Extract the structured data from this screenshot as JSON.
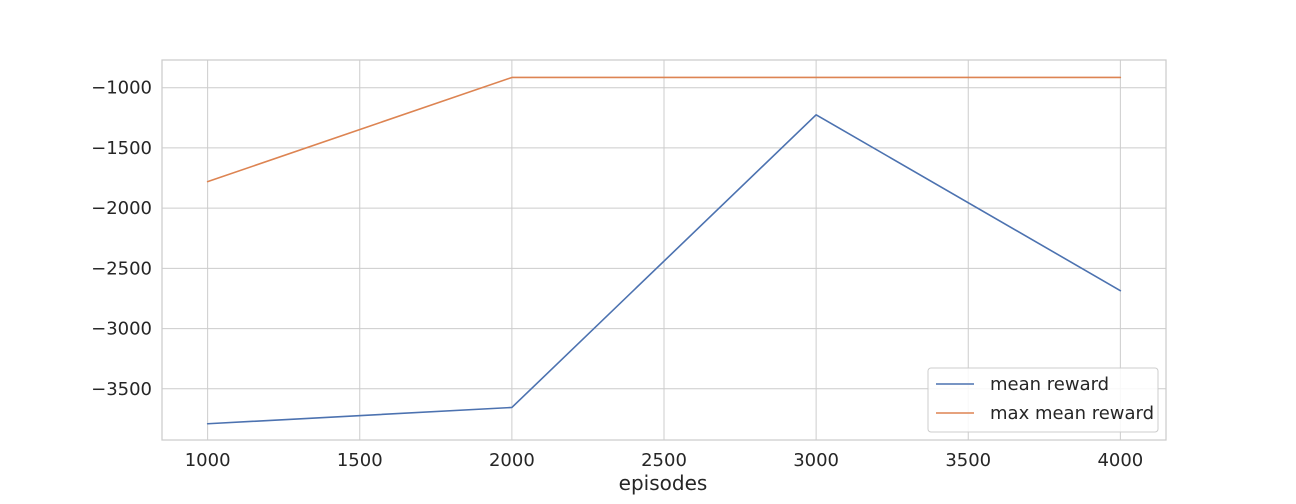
{
  "chart_data": {
    "type": "line",
    "title": "",
    "xlabel": "episodes",
    "ylabel": "",
    "x": [
      1000,
      2000,
      3000,
      4000
    ],
    "series": [
      {
        "name": "mean reward",
        "color": "#4c72b0",
        "values": [
          -3790,
          -3655,
          -1225,
          -2685
        ]
      },
      {
        "name": "max mean reward",
        "color": "#dd8452",
        "values": [
          -1780,
          -915,
          -915,
          -915
        ]
      }
    ],
    "xlim": [
      850,
      4150
    ],
    "ylim": [
      -3925,
      -770
    ],
    "xticks": [
      1000,
      1500,
      2000,
      2500,
      3000,
      3500,
      4000
    ],
    "xtick_labels": [
      "1000",
      "1500",
      "2000",
      "2500",
      "3000",
      "3500",
      "4000"
    ],
    "yticks": [
      -1000,
      -1500,
      -2000,
      -2500,
      -3000,
      -3500
    ],
    "ytick_labels": [
      "−1000",
      "−1500",
      "−2000",
      "−2500",
      "−3000",
      "−3500"
    ],
    "grid": true,
    "legend_position": "lower-right",
    "grid_color": "#cccccc",
    "frame_color": "#cccccc"
  }
}
